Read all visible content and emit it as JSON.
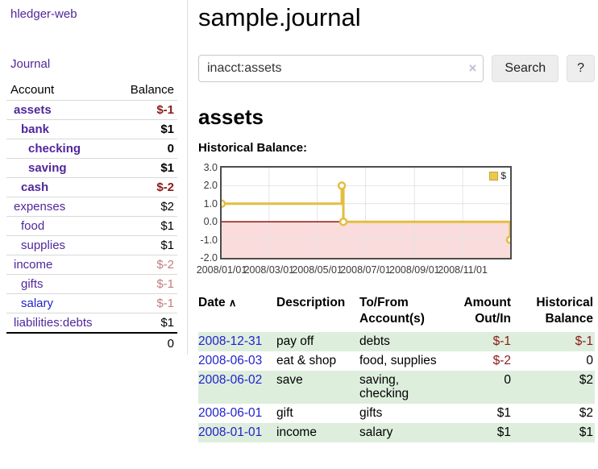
{
  "colors": {
    "accent_purple": "#51279b",
    "link_blue": "#2222cc",
    "negative_dark": "#8b1a1a",
    "negative_light": "#c27e7e",
    "row_green": "#ddeedd",
    "chart_line": "#e4bd40",
    "chart_grid": "#e4e4e4",
    "chart_zero_line": "#8b0000",
    "chart_negative_fill": "#fadcdc"
  },
  "sidebar": {
    "brand": "hledger-web",
    "nav": {
      "journal": "Journal"
    },
    "accounts_table": {
      "headers": {
        "account": "Account",
        "balance": "Balance"
      },
      "rows": [
        {
          "name": "assets",
          "indent": 0,
          "balance": "$-1",
          "bold": true,
          "negative": true,
          "unvisited": false
        },
        {
          "name": "bank",
          "indent": 1,
          "balance": "$1",
          "bold": true,
          "negative": false,
          "unvisited": false
        },
        {
          "name": "checking",
          "indent": 2,
          "balance": "0",
          "bold": true,
          "negative": false,
          "unvisited": false
        },
        {
          "name": "saving",
          "indent": 2,
          "balance": "$1",
          "bold": true,
          "negative": false,
          "unvisited": false
        },
        {
          "name": "cash",
          "indent": 1,
          "balance": "$-2",
          "bold": true,
          "negative": true,
          "unvisited": false
        },
        {
          "name": "expenses",
          "indent": 0,
          "balance": "$2",
          "bold": false,
          "negative": false,
          "unvisited": false
        },
        {
          "name": "food",
          "indent": 1,
          "balance": "$1",
          "bold": false,
          "negative": false,
          "unvisited": false
        },
        {
          "name": "supplies",
          "indent": 1,
          "balance": "$1",
          "bold": false,
          "negative": false,
          "unvisited": false
        },
        {
          "name": "income",
          "indent": 0,
          "balance": "$-2",
          "bold": false,
          "negative": true,
          "unvisited": false
        },
        {
          "name": "gifts",
          "indent": 1,
          "balance": "$-1",
          "bold": false,
          "negative": true,
          "unvisited": false
        },
        {
          "name": "salary",
          "indent": 1,
          "balance": "$-1",
          "bold": false,
          "negative": true,
          "unvisited": true
        },
        {
          "name": "liabilities:debts",
          "indent": 0,
          "balance": "$1",
          "bold": false,
          "negative": false,
          "unvisited": false
        }
      ],
      "total": "0"
    }
  },
  "header": {
    "title": "sample.journal"
  },
  "search": {
    "value": "inacct:assets",
    "clear_icon": "×",
    "button_label": "Search",
    "help_label": "?"
  },
  "account_page": {
    "title": "assets",
    "chart_heading": "Historical Balance:"
  },
  "chart_data": {
    "type": "line",
    "step": true,
    "series": [
      {
        "name": "$",
        "points": [
          {
            "date": "2008-01-01",
            "value": 1
          },
          {
            "date": "2008-06-01",
            "value": 2
          },
          {
            "date": "2008-06-03",
            "value": 0
          },
          {
            "date": "2008-12-31",
            "value": -1
          }
        ]
      }
    ],
    "x_range": [
      "2008-01-01",
      "2008-12-31"
    ],
    "ylim": [
      -2,
      3
    ],
    "y_ticks": [
      "3.0",
      "2.0",
      "1.0",
      "0.0",
      "-1.0",
      "-2.0"
    ],
    "y_tick_values": [
      3,
      2,
      1,
      0,
      -1,
      -2
    ],
    "x_ticks": [
      "2008/01/01",
      "2008/03/01",
      "2008/05/01",
      "2008/07/01",
      "2008/09/01",
      "2008/11/01"
    ],
    "grid": true,
    "zero_line": true,
    "negative_region_shaded": true,
    "legend": {
      "position": "top-right",
      "label": "$"
    }
  },
  "register": {
    "sort_icon": "∧",
    "headers": {
      "date": "Date",
      "description": "Description",
      "accounts": "To/From Account(s)",
      "amount": "Amount Out/In",
      "balance": "Historical Balance"
    },
    "rows": [
      {
        "date": "2008-12-31",
        "description": "pay off",
        "accounts": "debts",
        "amount": "$-1",
        "balance": "$-1",
        "amount_negative": true,
        "balance_negative": true
      },
      {
        "date": "2008-06-03",
        "description": "eat & shop",
        "accounts": "food, supplies",
        "amount": "$-2",
        "balance": "0",
        "amount_negative": true,
        "balance_negative": false
      },
      {
        "date": "2008-06-02",
        "description": "save",
        "accounts": "saving, checking",
        "amount": "0",
        "balance": "$2",
        "amount_negative": false,
        "balance_negative": false
      },
      {
        "date": "2008-06-01",
        "description": "gift",
        "accounts": "gifts",
        "amount": "$1",
        "balance": "$2",
        "amount_negative": false,
        "balance_negative": false
      },
      {
        "date": "2008-01-01",
        "description": "income",
        "accounts": "salary",
        "amount": "$1",
        "balance": "$1",
        "amount_negative": false,
        "balance_negative": false
      }
    ]
  }
}
